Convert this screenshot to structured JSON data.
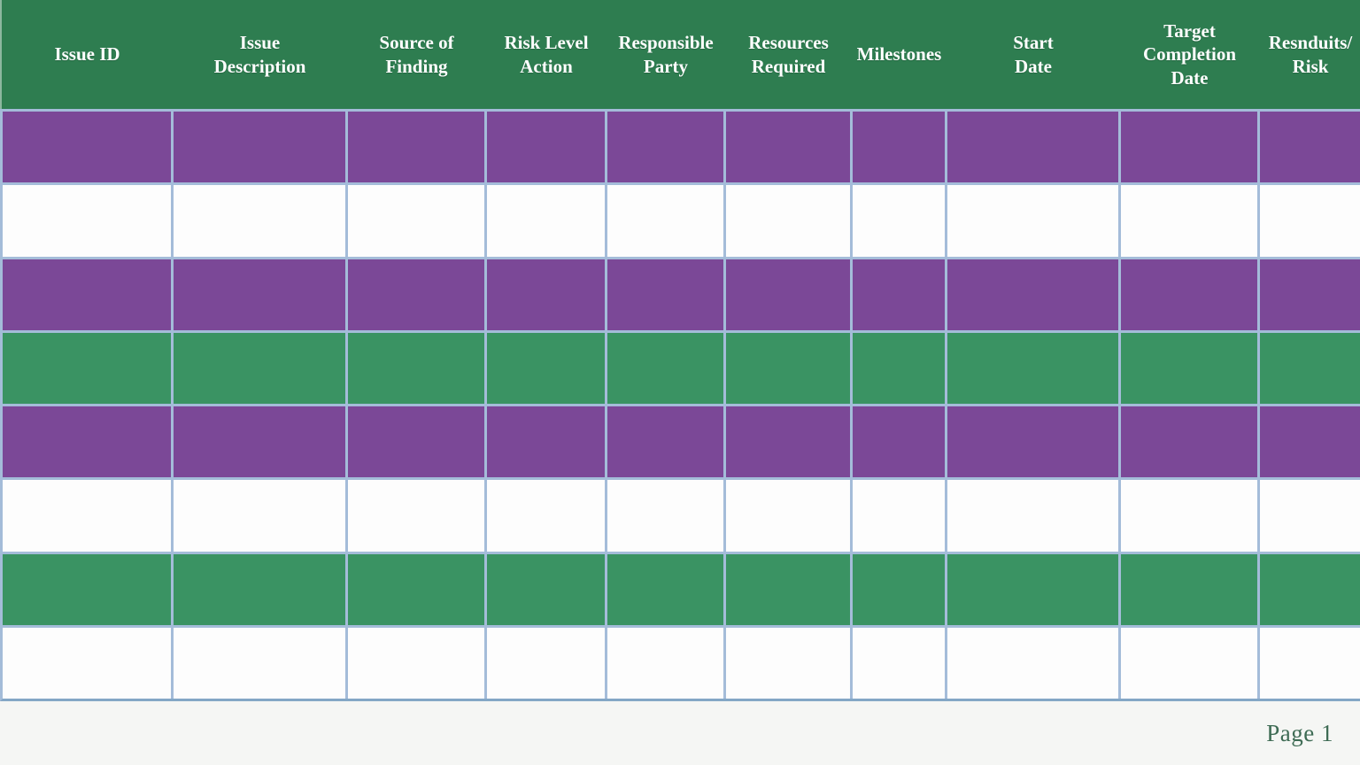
{
  "table": {
    "headers": [
      "Issue ID",
      "Issue\nDescription",
      "Source of\nFinding",
      "Risk Level\nAction",
      "Responsible\nParty",
      "Resources\nRequired",
      "Milestones",
      "Start\nDate",
      "Target\nCompletion\nDate",
      "Resnduits/\nRisk"
    ],
    "rows": [
      {
        "fill": "purple",
        "cells": [
          "",
          "",
          "",
          "",
          "",
          "",
          "",
          "",
          "",
          ""
        ]
      },
      {
        "fill": "white",
        "cells": [
          "",
          "",
          "",
          "",
          "",
          "",
          "",
          "",
          "",
          ""
        ]
      },
      {
        "fill": "purple",
        "cells": [
          "",
          "",
          "",
          "",
          "",
          "",
          "",
          "",
          "",
          ""
        ]
      },
      {
        "fill": "green",
        "cells": [
          "",
          "",
          "",
          "",
          "",
          "",
          "",
          "",
          "",
          ""
        ]
      },
      {
        "fill": "purple",
        "cells": [
          "",
          "",
          "",
          "",
          "",
          "",
          "",
          "",
          "",
          ""
        ]
      },
      {
        "fill": "white",
        "cells": [
          "",
          "",
          "",
          "",
          "",
          "",
          "",
          "",
          "",
          ""
        ]
      },
      {
        "fill": "green",
        "cells": [
          "",
          "",
          "",
          "",
          "",
          "",
          "",
          "",
          "",
          ""
        ]
      },
      {
        "fill": "white",
        "cells": [
          "",
          "",
          "",
          "",
          "",
          "",
          "",
          "",
          "",
          ""
        ]
      }
    ]
  },
  "footer": {
    "page_label": "Page 1"
  },
  "colors": {
    "header_green": "#2e7d50",
    "row_green": "#3a9363",
    "row_purple": "#7b4897",
    "row_white": "#fdfdfd",
    "grid_line": "#a4bcd9",
    "footer_bg": "#f5f6f4",
    "page_text": "#3e6b54"
  }
}
